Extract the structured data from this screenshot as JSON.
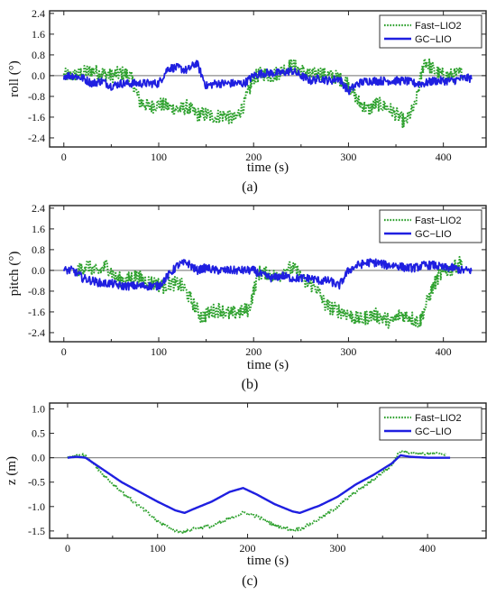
{
  "chart_data": [
    {
      "type": "line",
      "caption": "(a)",
      "xlabel": "time (s)",
      "ylabel": "roll (°)",
      "xlim": [
        -15,
        445
      ],
      "ylim": [
        -2.75,
        2.5
      ],
      "xticks": [
        0,
        100,
        200,
        300,
        400
      ],
      "yticks": [
        2.4,
        1.6,
        0.8,
        0.0,
        -0.8,
        -1.6,
        -2.4
      ],
      "ytick_labels": [
        "2.4",
        "1.6",
        "0.8",
        "0.0",
        "-0.8",
        "-1.6",
        "-2.4"
      ],
      "grid": false,
      "legend": "top-right",
      "colors": {
        "fast_lio2": "#2ca02c",
        "gc_lio": "#1f1fe0",
        "zero_line": "#8c8c8c"
      },
      "series": [
        {
          "name": "Fast−LIO2",
          "style": "dotted",
          "x": [
            0,
            10,
            20,
            30,
            40,
            50,
            60,
            70,
            80,
            90,
            100,
            110,
            120,
            130,
            140,
            150,
            160,
            170,
            180,
            190,
            200,
            210,
            220,
            230,
            240,
            250,
            260,
            270,
            280,
            290,
            300,
            310,
            320,
            330,
            340,
            350,
            360,
            370,
            380,
            390,
            400,
            410,
            420
          ],
          "y": [
            0.0,
            0.0,
            0.1,
            0.2,
            0.1,
            0.0,
            0.1,
            0.0,
            -1.0,
            -1.2,
            -1.1,
            -1.2,
            -1.3,
            -1.2,
            -1.5,
            -1.5,
            -1.6,
            -1.5,
            -1.7,
            -1.1,
            -0.1,
            0.1,
            0.0,
            0.2,
            0.4,
            0.2,
            0.0,
            0.1,
            0.0,
            -0.1,
            -0.3,
            -1.0,
            -1.3,
            -1.1,
            -1.2,
            -1.5,
            -1.8,
            -1.2,
            0.6,
            0.2,
            0.0,
            0.0,
            0.1
          ]
        },
        {
          "name": "GC−LIO",
          "style": "solid",
          "x": [
            0,
            10,
            20,
            30,
            40,
            50,
            60,
            70,
            80,
            90,
            100,
            110,
            120,
            130,
            140,
            150,
            160,
            170,
            180,
            190,
            200,
            210,
            220,
            230,
            240,
            250,
            260,
            270,
            280,
            290,
            300,
            310,
            320,
            330,
            340,
            350,
            360,
            370,
            380,
            390,
            400,
            410,
            420,
            430
          ],
          "y": [
            0.0,
            0.0,
            -0.1,
            -0.3,
            -0.2,
            -0.4,
            -0.3,
            -0.3,
            -0.3,
            -0.3,
            -0.3,
            0.3,
            0.3,
            0.2,
            0.5,
            -0.4,
            -0.3,
            -0.3,
            -0.3,
            -0.3,
            0.0,
            0.1,
            0.1,
            0.1,
            0.2,
            0.0,
            -0.2,
            -0.1,
            -0.2,
            -0.1,
            -0.6,
            -0.3,
            -0.2,
            -0.2,
            -0.2,
            -0.2,
            -0.2,
            -0.3,
            -0.3,
            -0.2,
            -0.2,
            -0.2,
            -0.1,
            -0.1
          ]
        }
      ]
    },
    {
      "type": "line",
      "caption": "(b)",
      "xlabel": "time (s)",
      "ylabel": "pitch (°)",
      "xlim": [
        -15,
        445
      ],
      "ylim": [
        -2.75,
        2.5
      ],
      "xticks": [
        0,
        100,
        200,
        300,
        400
      ],
      "yticks": [
        2.4,
        1.6,
        0.8,
        0.0,
        -0.8,
        -1.6,
        -2.4
      ],
      "ytick_labels": [
        "2.4",
        "1.6",
        "0.8",
        "0.0",
        "-0.8",
        "-1.6",
        "-2.4"
      ],
      "grid": false,
      "legend": "top-right",
      "colors": {
        "fast_lio2": "#2ca02c",
        "gc_lio": "#1f1fe0",
        "zero_line": "#8c8c8c"
      },
      "series": [
        {
          "name": "Fast−LIO2",
          "style": "dotted",
          "x": [
            15,
            25,
            35,
            45,
            55,
            65,
            75,
            85,
            95,
            105,
            115,
            125,
            135,
            145,
            155,
            165,
            175,
            185,
            195,
            205,
            215,
            225,
            235,
            245,
            255,
            265,
            275,
            285,
            295,
            305,
            315,
            325,
            335,
            345,
            355,
            365,
            375,
            385,
            395,
            405,
            415,
            420
          ],
          "y": [
            0.0,
            0.2,
            -0.1,
            0.2,
            -0.3,
            -0.4,
            -0.2,
            -0.4,
            -0.5,
            -0.6,
            -0.5,
            -0.6,
            -1.2,
            -1.8,
            -1.6,
            -1.5,
            -1.7,
            -1.6,
            -1.5,
            -0.1,
            -0.1,
            -0.3,
            0.1,
            0.0,
            -0.5,
            -0.6,
            -1.3,
            -1.5,
            -1.6,
            -1.8,
            -1.9,
            -1.7,
            -1.8,
            -2.0,
            -1.7,
            -1.8,
            -2.0,
            -1.0,
            -0.2,
            0.0,
            0.2,
            0.4
          ]
        },
        {
          "name": "GC−LIO",
          "style": "solid",
          "x": [
            0,
            10,
            20,
            30,
            40,
            50,
            60,
            70,
            80,
            90,
            100,
            110,
            120,
            130,
            140,
            150,
            160,
            170,
            180,
            190,
            200,
            210,
            220,
            230,
            240,
            250,
            260,
            270,
            280,
            290,
            300,
            310,
            320,
            330,
            340,
            350,
            360,
            370,
            380,
            390,
            400,
            410,
            420,
            430
          ],
          "y": [
            0.0,
            0.0,
            -0.3,
            -0.4,
            -0.5,
            -0.5,
            -0.6,
            -0.6,
            -0.6,
            -0.6,
            -0.6,
            -0.2,
            0.2,
            0.3,
            0.0,
            0.1,
            0.0,
            0.0,
            0.0,
            0.0,
            0.0,
            -0.2,
            -0.3,
            -0.2,
            -0.3,
            -0.3,
            -0.3,
            -0.4,
            -0.4,
            -0.6,
            0.0,
            0.2,
            0.3,
            0.3,
            0.2,
            0.2,
            0.1,
            0.1,
            0.2,
            0.2,
            0.1,
            0.1,
            0.0,
            0.0
          ]
        }
      ]
    },
    {
      "type": "line",
      "caption": "(c)",
      "xlabel": "time (s)",
      "ylabel": "z (m)",
      "xlim": [
        -20,
        465
      ],
      "ylim": [
        -1.65,
        1.12
      ],
      "xticks": [
        0,
        100,
        200,
        300,
        400
      ],
      "yticks": [
        1.0,
        0.5,
        0.0,
        -0.5,
        -1.0,
        -1.5
      ],
      "ytick_labels": [
        "1.0",
        "0.5",
        "0.0",
        "-0.5",
        "-1.0",
        "-1.5"
      ],
      "grid": false,
      "legend": "top-right",
      "colors": {
        "fast_lio2": "#2ca02c",
        "gc_lio": "#1f1fe0",
        "zero_line": "#8c8c8c"
      },
      "series": [
        {
          "name": "Fast−LIO2",
          "style": "dotted",
          "x": [
            0,
            10,
            20,
            40,
            60,
            80,
            100,
            120,
            130,
            140,
            160,
            180,
            195,
            210,
            230,
            250,
            260,
            280,
            300,
            320,
            340,
            360,
            370,
            380,
            400,
            420
          ],
          "y": [
            0.0,
            0.05,
            0.05,
            -0.35,
            -0.7,
            -1.0,
            -1.3,
            -1.5,
            -1.52,
            -1.45,
            -1.4,
            -1.25,
            -1.12,
            -1.2,
            -1.38,
            -1.48,
            -1.45,
            -1.25,
            -1.0,
            -0.7,
            -0.45,
            -0.15,
            0.15,
            0.1,
            0.08,
            0.08
          ]
        },
        {
          "name": "GC−LIO",
          "style": "solid",
          "x": [
            0,
            10,
            20,
            40,
            60,
            80,
            100,
            120,
            130,
            140,
            160,
            180,
            195,
            210,
            230,
            250,
            258,
            280,
            300,
            320,
            340,
            360,
            370,
            380,
            400,
            425
          ],
          "y": [
            0.0,
            0.02,
            0.0,
            -0.25,
            -0.5,
            -0.7,
            -0.9,
            -1.08,
            -1.13,
            -1.05,
            -0.9,
            -0.7,
            -0.62,
            -0.75,
            -0.95,
            -1.1,
            -1.13,
            -0.98,
            -0.8,
            -0.55,
            -0.35,
            -0.12,
            0.05,
            0.02,
            0.0,
            0.0
          ]
        }
      ]
    }
  ]
}
